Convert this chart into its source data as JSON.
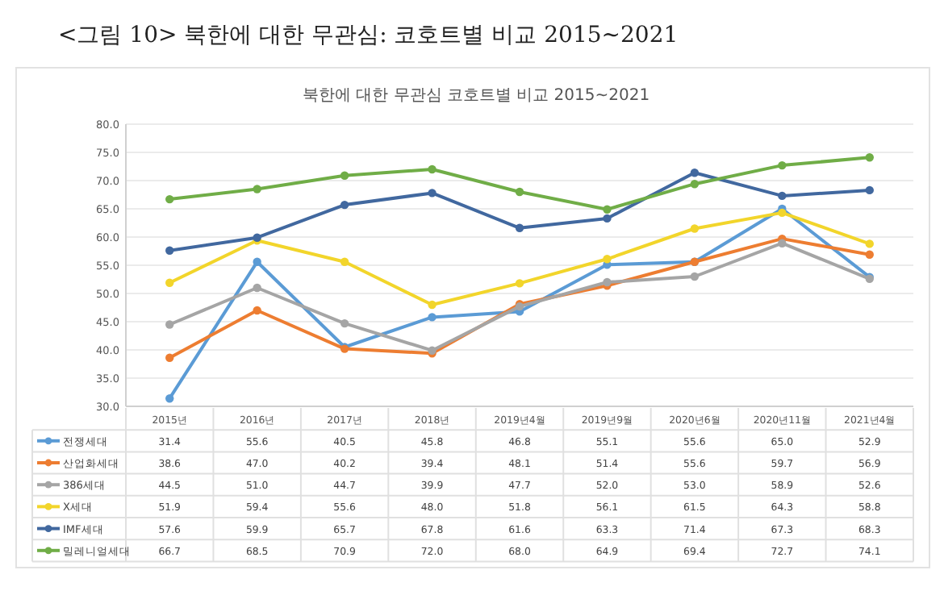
{
  "chart_data": {
    "type": "line",
    "title": "<그림 10> 북한에 대한 무관심: 코호트별 비교 2015~2021",
    "subtitle": "북한에 대한 무관심 코호트별 비교 2015~2021",
    "categories": [
      "2015년",
      "2016년",
      "2017년",
      "2018년",
      "2019년4월",
      "2019년9월",
      "2020년6월",
      "2020년11월",
      "2021년4월"
    ],
    "series": [
      {
        "name": "전쟁세대",
        "color": "#5b9bd5",
        "values": [
          31.4,
          55.6,
          40.5,
          45.8,
          46.8,
          55.1,
          55.6,
          65.0,
          52.9
        ],
        "value_labels": [
          "31.4",
          "55.6",
          "40.5",
          "45.8",
          "46.8",
          "55.1",
          "55.6",
          "65.0",
          "52.9"
        ]
      },
      {
        "name": "산업화세대",
        "color": "#ed7d31",
        "values": [
          38.6,
          47.0,
          40.2,
          39.4,
          48.1,
          51.4,
          55.6,
          59.7,
          56.9
        ],
        "value_labels": [
          "38.6",
          "47.0",
          "40.2",
          "39.4",
          "48.1",
          "51.4",
          "55.6",
          "59.7",
          "56.9"
        ]
      },
      {
        "name": "386세대",
        "color": "#a5a5a5",
        "values": [
          44.5,
          51.0,
          44.7,
          39.9,
          47.7,
          52.0,
          53.0,
          58.9,
          52.6
        ],
        "value_labels": [
          "44.5",
          "51.0",
          "44.7",
          "39.9",
          "47.7",
          "52.0",
          "53.0",
          "58.9",
          "52.6"
        ]
      },
      {
        "name": "X세대",
        "color": "#f2d52b",
        "values": [
          51.9,
          59.4,
          55.6,
          48.0,
          51.8,
          56.1,
          61.5,
          64.3,
          58.8
        ],
        "value_labels": [
          "51.9",
          "59.4",
          "55.6",
          "48.0",
          "51.8",
          "56.1",
          "61.5",
          "64.3",
          "58.8"
        ]
      },
      {
        "name": "IMF세대",
        "color": "#41689f",
        "values": [
          57.6,
          59.9,
          65.7,
          67.8,
          61.6,
          63.3,
          71.4,
          67.3,
          68.3
        ],
        "value_labels": [
          "57.6",
          "59.9",
          "65.7",
          "67.8",
          "61.6",
          "63.3",
          "71.4",
          "67.3",
          "68.3"
        ]
      },
      {
        "name": "밀레니얼세대",
        "color": "#70ad47",
        "values": [
          66.7,
          68.5,
          70.9,
          72.0,
          68.0,
          64.9,
          69.4,
          72.7,
          74.1
        ],
        "value_labels": [
          "66.7",
          "68.5",
          "70.9",
          "72.0",
          "68.0",
          "64.9",
          "69.4",
          "72.7",
          "74.1"
        ]
      }
    ],
    "ylim": [
      30,
      80
    ],
    "yticks": [
      {
        "value": 30,
        "label": "30.0"
      },
      {
        "value": 35,
        "label": "35.0"
      },
      {
        "value": 40,
        "label": "40.0"
      },
      {
        "value": 45,
        "label": "45.0"
      },
      {
        "value": 50,
        "label": "50.0"
      },
      {
        "value": 55,
        "label": "55.0"
      },
      {
        "value": 60,
        "label": "60.0"
      },
      {
        "value": 65,
        "label": "65.0"
      },
      {
        "value": 70,
        "label": "70.0"
      },
      {
        "value": 75,
        "label": "75.0"
      },
      {
        "value": 80,
        "label": "80.0"
      }
    ],
    "grid": "y",
    "marker": "circle",
    "line_style": "solid",
    "legend": "bottom"
  }
}
